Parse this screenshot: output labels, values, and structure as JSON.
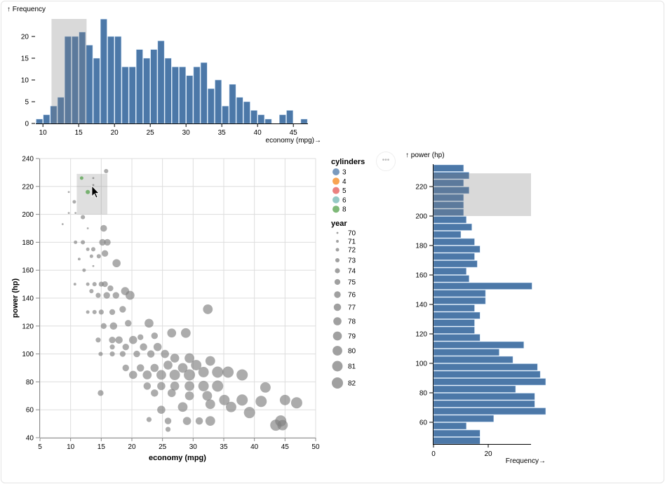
{
  "colors": {
    "bar": "#4c78a8",
    "point": "#808080",
    "brush": "#808080",
    "grid": "#dddddd",
    "cylinders": {
      "3": "#4c78a8",
      "4": "#f58518",
      "5": "#e45756",
      "6": "#72b7b2",
      "8": "#54a24b"
    }
  },
  "more_button": "•••",
  "chart_data": [
    {
      "type": "bar",
      "name": "economy-histogram",
      "title": "↑ Frequency",
      "xlabel": "economy (mpg)→",
      "bin_start": 9,
      "bin_step": 1,
      "values": [
        1,
        2,
        4,
        6,
        20,
        20,
        21,
        18,
        15,
        24,
        20,
        20,
        13,
        13,
        17,
        15,
        17,
        19,
        15,
        13,
        13,
        11,
        13,
        14,
        8,
        10,
        4,
        9,
        6,
        5,
        3,
        2,
        1,
        0,
        2,
        3,
        0,
        1
      ],
      "xticks": [
        10,
        15,
        20,
        25,
        30,
        35,
        40,
        45
      ],
      "yticks": [
        0,
        5,
        10,
        15,
        20
      ],
      "xlim": [
        9,
        47
      ],
      "ylim": [
        0,
        24
      ],
      "brush": [
        11.2,
        16.1
      ]
    },
    {
      "type": "scatter",
      "name": "power-vs-economy",
      "xlabel": "economy (mpg)",
      "ylabel": "power (hp)",
      "xlim": [
        5,
        50
      ],
      "ylim": [
        40,
        240
      ],
      "xticks": [
        5,
        10,
        15,
        20,
        25,
        30,
        35,
        40,
        45,
        50
      ],
      "yticks": [
        40,
        60,
        80,
        100,
        120,
        140,
        160,
        180,
        200,
        220,
        240
      ],
      "grid": true,
      "brush": {
        "x": [
          11,
          16
        ],
        "y": [
          200,
          229
        ]
      },
      "selected": [
        [
          11.8,
          226,
          72,
          8
        ],
        [
          12.8,
          216,
          73,
          8
        ],
        [
          13.7,
          226,
          70,
          8
        ],
        [
          13.7,
          221,
          70,
          8
        ]
      ],
      "points": [
        [
          15.8,
          231,
          73
        ],
        [
          9.7,
          216,
          70
        ],
        [
          10.6,
          209,
          72
        ],
        [
          9.7,
          201,
          70
        ],
        [
          8.7,
          193,
          70
        ],
        [
          10.8,
          201,
          70
        ],
        [
          12.8,
          190,
          70
        ],
        [
          15.4,
          190,
          76
        ],
        [
          12,
          198,
          73
        ],
        [
          10.8,
          180,
          72
        ],
        [
          12,
          180,
          73
        ],
        [
          12.8,
          175,
          72
        ],
        [
          13.7,
          175,
          73
        ],
        [
          15.2,
          180,
          76
        ],
        [
          16,
          180,
          76
        ],
        [
          11.4,
          168,
          71
        ],
        [
          13.4,
          170,
          72
        ],
        [
          14.6,
          170,
          73
        ],
        [
          15.6,
          172,
          76
        ],
        [
          17.5,
          165,
          78
        ],
        [
          13.7,
          163,
          70
        ],
        [
          12.2,
          160,
          72
        ],
        [
          10.7,
          150,
          71
        ],
        [
          12.8,
          150,
          72
        ],
        [
          13.9,
          150,
          73
        ],
        [
          15,
          150,
          74
        ],
        [
          15.6,
          150,
          75
        ],
        [
          16.5,
          147,
          75
        ],
        [
          13.4,
          145,
          73
        ],
        [
          14.5,
          142,
          74
        ],
        [
          15.9,
          142,
          76
        ],
        [
          17.4,
          142,
          76
        ],
        [
          18.9,
          145,
          78
        ],
        [
          19.7,
          142,
          79
        ],
        [
          12.8,
          130,
          72
        ],
        [
          13.9,
          130,
          73
        ],
        [
          15,
          130,
          74
        ],
        [
          16.8,
          130,
          75
        ],
        [
          18.5,
          132,
          76
        ],
        [
          32.4,
          132,
          80
        ],
        [
          15.4,
          120,
          75
        ],
        [
          17,
          120,
          77
        ],
        [
          19.4,
          122,
          76
        ],
        [
          22.8,
          122,
          79
        ],
        [
          14.5,
          110,
          74
        ],
        [
          16.8,
          110,
          76
        ],
        [
          17.9,
          110,
          77
        ],
        [
          20.2,
          110,
          78
        ],
        [
          21.4,
          112,
          75
        ],
        [
          23.7,
          113,
          76
        ],
        [
          26.5,
          115,
          79
        ],
        [
          28.8,
          115,
          80
        ],
        [
          16.8,
          105,
          74
        ],
        [
          19,
          105,
          76
        ],
        [
          21.9,
          105,
          77
        ],
        [
          24.2,
          105,
          78
        ],
        [
          14.9,
          72,
          75
        ],
        [
          14.9,
          100,
          73
        ],
        [
          16.8,
          100,
          74
        ],
        [
          18.5,
          100,
          75
        ],
        [
          20.8,
          100,
          76
        ],
        [
          23.1,
          100,
          77
        ],
        [
          25.4,
          100,
          78
        ],
        [
          27,
          97,
          79
        ],
        [
          29.4,
          97,
          80
        ],
        [
          19,
          90,
          76
        ],
        [
          21.4,
          90,
          77
        ],
        [
          23.7,
          90,
          78
        ],
        [
          25.9,
          92,
          79
        ],
        [
          28.3,
          90,
          80
        ],
        [
          30.5,
          92,
          81
        ],
        [
          32.8,
          95,
          80
        ],
        [
          20.2,
          85,
          78
        ],
        [
          22.5,
          85,
          79
        ],
        [
          24.8,
          85,
          80
        ],
        [
          27,
          85,
          81
        ],
        [
          29.4,
          85,
          82
        ],
        [
          31.7,
          87,
          81
        ],
        [
          34,
          87,
          82
        ],
        [
          35.7,
          87,
          82
        ],
        [
          38,
          85,
          82
        ],
        [
          22.5,
          77,
          77
        ],
        [
          24.8,
          77,
          78
        ],
        [
          27,
          77,
          79
        ],
        [
          29.4,
          77,
          80
        ],
        [
          31.7,
          77,
          81
        ],
        [
          34,
          77,
          82
        ],
        [
          41.8,
          76,
          81
        ],
        [
          23.7,
          72,
          77
        ],
        [
          26.5,
          72,
          78
        ],
        [
          29.4,
          70,
          79
        ],
        [
          32.3,
          70,
          80
        ],
        [
          35.1,
          67,
          81
        ],
        [
          38,
          67,
          82
        ],
        [
          41.1,
          66,
          82
        ],
        [
          45,
          67,
          81
        ],
        [
          46.9,
          65,
          82
        ],
        [
          24.8,
          60,
          78
        ],
        [
          28.3,
          62,
          80
        ],
        [
          32.8,
          64,
          80
        ],
        [
          36.2,
          62,
          81
        ],
        [
          39.2,
          58,
          82
        ],
        [
          22.8,
          53,
          74
        ],
        [
          25.9,
          52,
          76
        ],
        [
          29,
          52,
          78
        ],
        [
          31,
          52,
          77
        ],
        [
          32.8,
          52,
          80
        ],
        [
          25.9,
          46,
          74
        ],
        [
          43.5,
          49,
          82
        ],
        [
          44.6,
          49,
          81
        ],
        [
          44.3,
          52,
          82
        ]
      ]
    },
    {
      "type": "bar",
      "name": "power-histogram",
      "orientation": "horizontal",
      "title": "↑ power (hp)",
      "xlabel": "Frequency→",
      "bin_start": 45,
      "bin_step": 5,
      "values": [
        17,
        17,
        12,
        22,
        41,
        37,
        37,
        30,
        41,
        39,
        38,
        29,
        24,
        33,
        17,
        15,
        15,
        17,
        15,
        19,
        19,
        36,
        13,
        12,
        16,
        15,
        17,
        15,
        10,
        14,
        12,
        11,
        11,
        11,
        13,
        11,
        13,
        11
      ],
      "yticks": [
        60,
        80,
        100,
        120,
        140,
        160,
        180,
        200,
        220
      ],
      "xticks": [
        0,
        20
      ],
      "ylim": [
        45,
        235
      ],
      "brush": [
        200,
        229
      ]
    }
  ],
  "legend": {
    "cylinders": {
      "title": "cylinders",
      "items": [
        "3",
        "4",
        "5",
        "6",
        "8"
      ]
    },
    "year": {
      "title": "year",
      "items": [
        "70",
        "71",
        "72",
        "73",
        "74",
        "75",
        "76",
        "77",
        "78",
        "79",
        "80",
        "81",
        "82"
      ]
    }
  }
}
